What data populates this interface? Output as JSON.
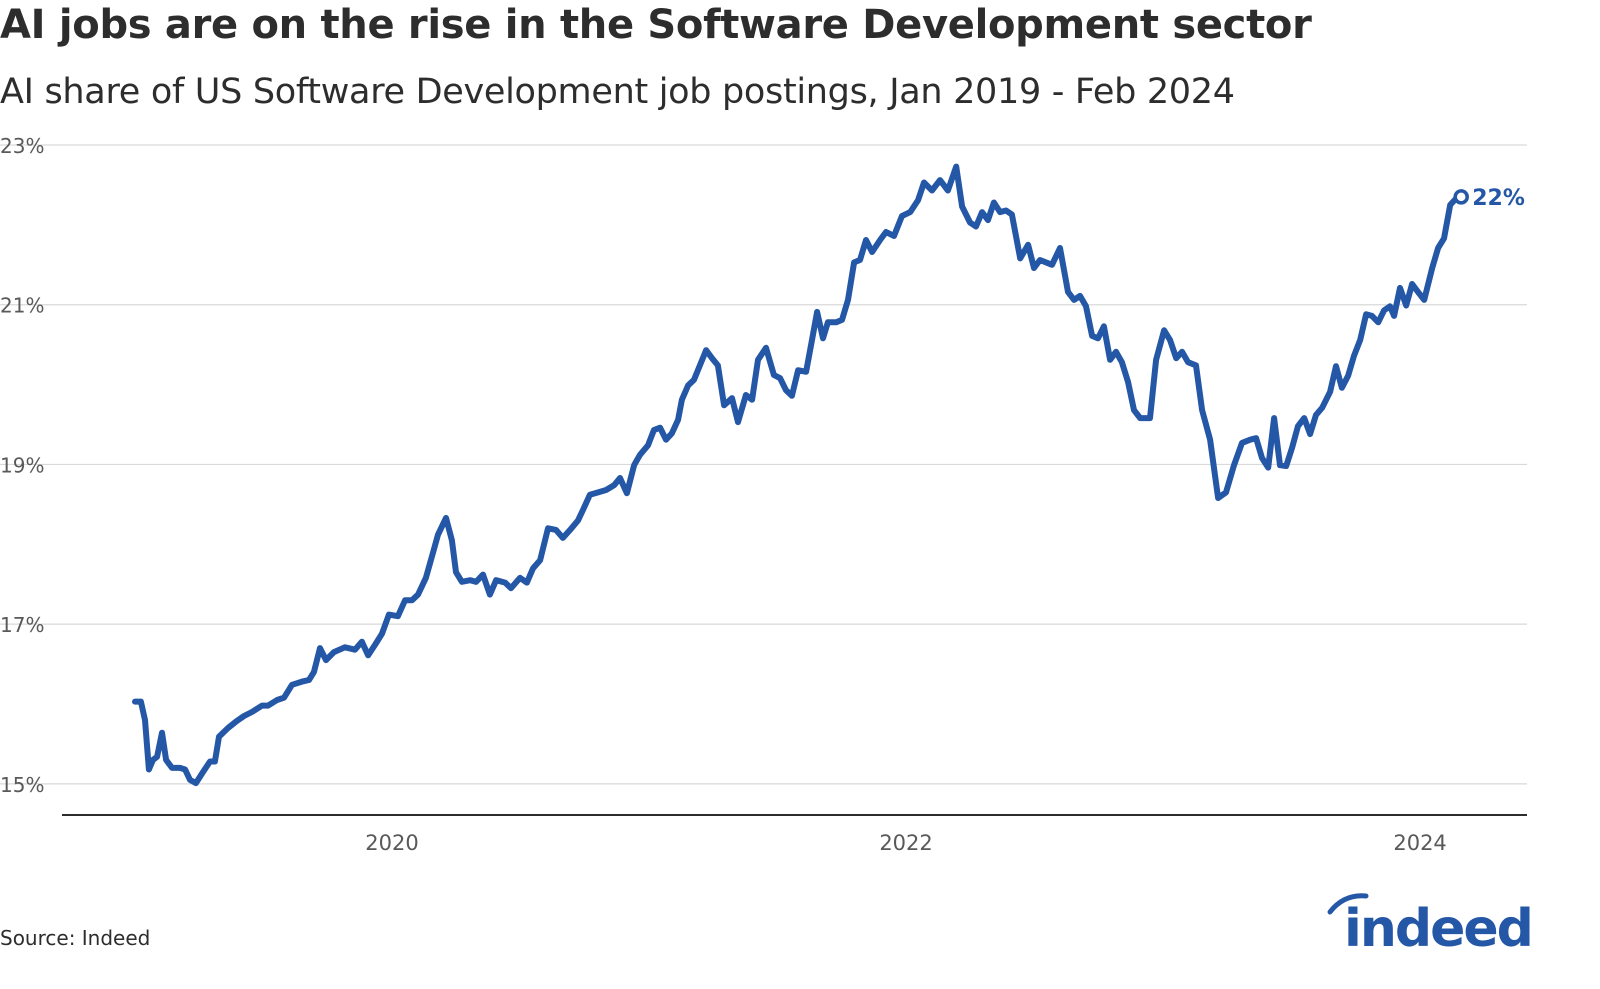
{
  "title": "AI jobs are on the rise in the Software Development sector",
  "subtitle": "AI share of US Software Development job postings, Jan 2019 - Feb 2024",
  "source": "Source: Indeed",
  "logo_text": "indeed",
  "colors": {
    "line": "#2557a7",
    "grid": "#d9d9d9",
    "axis": "#2d2d2d",
    "label": "#2557a7"
  },
  "chart_data": {
    "type": "line",
    "title": "AI jobs are on the rise in the Software Development sector",
    "subtitle": "AI share of US Software Development job postings, Jan 2019 - Feb 2024",
    "xlabel": "",
    "ylabel": "",
    "xlim": [
      2018.716,
      2024.416
    ],
    "ylim": [
      14.61,
      23
    ],
    "grid": "horizontal",
    "legend": "none",
    "y_ticks": [
      {
        "value": 15,
        "label": "15%"
      },
      {
        "value": 17,
        "label": "17%"
      },
      {
        "value": 19,
        "label": "19%"
      },
      {
        "value": 21,
        "label": "21%"
      },
      {
        "value": 23,
        "label": "23%"
      }
    ],
    "x_ticks": [
      {
        "value": 2020,
        "label": "2020"
      },
      {
        "value": 2022,
        "label": "2022"
      },
      {
        "value": 2024,
        "label": "2024"
      }
    ],
    "end_label": "22%",
    "x_unit": "year (decimal)",
    "y_unit": "%",
    "series": [
      {
        "x": [
          2019.0,
          2019.023,
          2019.039,
          2019.054,
          2019.07,
          2019.086,
          2019.105,
          2019.121,
          2019.144,
          2019.175,
          2019.195,
          2019.214,
          2019.237,
          2019.265,
          2019.292,
          2019.311,
          2019.327,
          2019.362,
          2019.393,
          2019.424,
          2019.455,
          2019.494,
          2019.518,
          2019.553,
          2019.58,
          2019.611,
          2019.65,
          2019.677,
          2019.696,
          2019.72,
          2019.743,
          2019.774,
          2019.817,
          2019.856,
          2019.883,
          2019.907,
          2019.934,
          2019.961,
          2019.988,
          2020.023,
          2020.051,
          2020.078,
          2020.101,
          2020.132,
          2020.16,
          2020.179,
          2020.21,
          2020.233,
          2020.249,
          2020.272,
          2020.304,
          2020.327,
          2020.354,
          2020.381,
          2020.405,
          2020.44,
          2020.463,
          2020.498,
          2020.525,
          2020.549,
          2020.576,
          2020.607,
          2020.638,
          2020.665,
          2020.693,
          2020.724,
          2020.743,
          2020.77,
          2020.802,
          2020.833,
          2020.864,
          2020.887,
          2020.914,
          2020.942,
          2020.965,
          2020.996,
          2021.019,
          2021.043,
          2021.066,
          2021.089,
          2021.113,
          2021.128,
          2021.152,
          2021.175,
          2021.198,
          2021.222,
          2021.245,
          2021.268,
          2021.292,
          2021.323,
          2021.346,
          2021.377,
          2021.401,
          2021.424,
          2021.455,
          2021.486,
          2021.51,
          2021.533,
          2021.556,
          2021.58,
          2021.611,
          2021.634,
          2021.654,
          2021.677,
          2021.696,
          2021.728,
          2021.751,
          2021.774,
          2021.798,
          2021.821,
          2021.844,
          2021.868,
          2021.899,
          2021.922,
          2021.953,
          2021.984,
          2022.016,
          2022.047,
          2022.07,
          2022.101,
          2022.132,
          2022.163,
          2022.195,
          2022.218,
          2022.249,
          2022.272,
          2022.296,
          2022.319,
          2022.342,
          2022.366,
          2022.389,
          2022.412,
          2022.444,
          2022.475,
          2022.498,
          2022.521,
          2022.545,
          2022.568,
          2022.599,
          2022.63,
          2022.654,
          2022.677,
          2022.7,
          2022.724,
          2022.747,
          2022.77,
          2022.794,
          2022.817,
          2022.84,
          2022.864,
          2022.887,
          2022.911,
          2022.949,
          2022.973,
          2023.004,
          2023.027,
          2023.051,
          2023.074,
          2023.097,
          2023.128,
          2023.152,
          2023.183,
          2023.214,
          2023.245,
          2023.276,
          2023.307,
          2023.339,
          2023.362,
          2023.385,
          2023.409,
          2023.432,
          2023.455,
          2023.479,
          2023.502,
          2023.525,
          2023.549,
          2023.572,
          2023.595,
          2023.619,
          2023.65,
          2023.673,
          2023.696,
          2023.72,
          2023.743,
          2023.767,
          2023.79,
          2023.813,
          2023.837,
          2023.86,
          2023.883,
          2023.899,
          2023.922,
          2023.946,
          2023.969,
          2023.992,
          2024.016,
          2024.047,
          2024.07,
          2024.093,
          2024.117,
          2024.14,
          2024.16
        ],
        "y": [
          16.03,
          16.03,
          15.8,
          15.18,
          15.3,
          15.34,
          15.64,
          15.3,
          15.2,
          15.2,
          15.18,
          15.05,
          15.01,
          15.15,
          15.28,
          15.28,
          15.59,
          15.7,
          15.78,
          15.85,
          15.9,
          15.98,
          15.98,
          16.05,
          16.08,
          16.24,
          16.28,
          16.3,
          16.4,
          16.7,
          16.55,
          16.65,
          16.71,
          16.68,
          16.78,
          16.61,
          16.74,
          16.88,
          17.12,
          17.1,
          17.3,
          17.3,
          17.37,
          17.58,
          17.9,
          18.12,
          18.33,
          18.05,
          17.65,
          17.53,
          17.55,
          17.53,
          17.62,
          17.37,
          17.55,
          17.52,
          17.45,
          17.58,
          17.52,
          17.7,
          17.8,
          18.2,
          18.18,
          18.08,
          18.18,
          18.3,
          18.43,
          18.62,
          18.65,
          18.68,
          18.74,
          18.83,
          18.64,
          18.99,
          19.12,
          19.24,
          19.43,
          19.46,
          19.31,
          19.39,
          19.56,
          19.81,
          19.99,
          20.06,
          20.24,
          20.43,
          20.33,
          20.24,
          19.74,
          19.83,
          19.53,
          19.87,
          19.81,
          20.31,
          20.46,
          20.12,
          20.08,
          19.93,
          19.86,
          20.18,
          20.16,
          20.56,
          20.91,
          20.58,
          20.78,
          20.78,
          20.81,
          21.06,
          21.53,
          21.56,
          21.81,
          21.66,
          21.81,
          21.91,
          21.86,
          22.11,
          22.16,
          22.31,
          22.53,
          22.43,
          22.56,
          22.43,
          22.73,
          22.23,
          22.03,
          21.98,
          22.16,
          22.06,
          22.28,
          22.16,
          22.18,
          22.13,
          21.58,
          21.75,
          21.46,
          21.56,
          21.53,
          21.5,
          21.71,
          21.16,
          21.06,
          21.11,
          20.98,
          20.61,
          20.58,
          20.73,
          20.31,
          20.41,
          20.28,
          20.03,
          19.68,
          19.58,
          19.58,
          20.31,
          20.68,
          20.56,
          20.33,
          20.41,
          20.28,
          20.24,
          19.68,
          19.31,
          18.58,
          18.65,
          18.99,
          19.27,
          19.31,
          19.33,
          19.08,
          18.96,
          19.58,
          18.99,
          18.98,
          19.21,
          19.48,
          19.58,
          19.38,
          19.62,
          19.71,
          19.91,
          20.23,
          19.96,
          20.11,
          20.36,
          20.56,
          20.88,
          20.86,
          20.78,
          20.93,
          20.98,
          20.86,
          21.21,
          20.99,
          21.26,
          21.16,
          21.06,
          21.46,
          21.71,
          21.83,
          22.25,
          22.33,
          22.35
        ]
      }
    ]
  }
}
